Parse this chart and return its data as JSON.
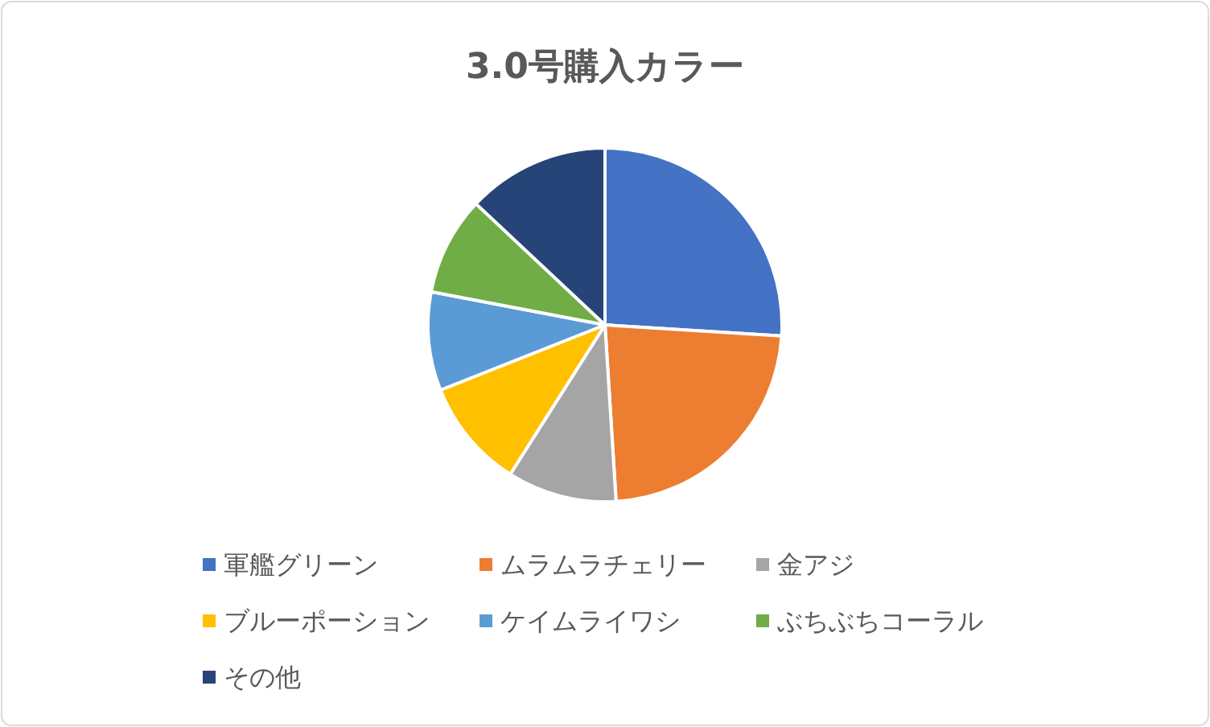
{
  "chart_data": {
    "type": "pie",
    "title": "3.0号購入カラー",
    "categories": [
      "軍艦グリーン",
      "ムラムラチェリー",
      "金アジ",
      "ブルーポーション",
      "ケイムライワシ",
      "ぶちぶちコーラル",
      "その他"
    ],
    "values": [
      26,
      23,
      10,
      10,
      9,
      9,
      13
    ],
    "colors": [
      "#4472c4",
      "#ed7d31",
      "#a5a5a5",
      "#ffc000",
      "#5b9bd5",
      "#70ad47",
      "#264478"
    ],
    "legend": "bottom"
  }
}
